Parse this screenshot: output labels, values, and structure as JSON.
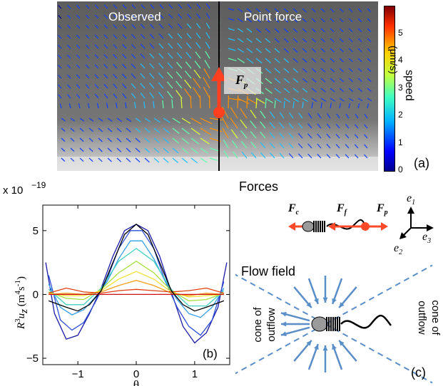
{
  "panel_a": {
    "left_label": "Observed",
    "right_label": "Point force",
    "force_label": "F",
    "force_sub": "p",
    "colorbar": {
      "ticks": [
        "0",
        "1",
        "2",
        "3",
        "4",
        "5"
      ],
      "label": "speed",
      "unit": "(μm/s)",
      "max": 6
    },
    "panel_tag": "(a)"
  },
  "panel_b": {
    "scale_label": "x 10",
    "scale_exp": "−19",
    "ylabel_main": "R",
    "ylabel_sup": "3",
    "ylabel_u": "u",
    "ylabel_sub": "z",
    "ylabel_unit": " (m",
    "ylabel_unit_sup1": "4",
    "ylabel_unit_mid": "s",
    "ylabel_unit_sup2": "-1",
    "ylabel_unit_end": ")",
    "xlabel": "θ",
    "xticks": [
      "−1",
      "0",
      "1"
    ],
    "yticks": [
      "5",
      "0",
      "−5"
    ],
    "panel_tag": "(b)"
  },
  "chart_data": {
    "type": "line",
    "title": "",
    "xlabel": "θ",
    "ylabel": "R³u_z (m⁴s⁻¹)",
    "xlim": [
      -1.6,
      1.6
    ],
    "ylim": [
      -5.5,
      7.0
    ],
    "y_scale_factor": "x 10^-19",
    "grid": false,
    "legend": "none",
    "series": [
      {
        "color": "#000000",
        "x": [
          -1.5,
          -1.2,
          -1.0,
          -0.8,
          -0.6,
          -0.4,
          -0.2,
          0,
          0.2,
          0.4,
          0.6,
          0.8,
          1.0,
          1.2,
          1.5
        ],
        "y": [
          -0.5,
          -1.0,
          -1.3,
          -0.8,
          0.3,
          2.5,
          4.7,
          5.5,
          4.7,
          2.5,
          0.3,
          -0.8,
          -1.3,
          -1.0,
          -0.5
        ]
      },
      {
        "color": "#1a1aa8",
        "x": [
          -1.55,
          -1.4,
          -1.2,
          -1.0,
          -0.8,
          -0.6,
          -0.4,
          -0.2,
          0,
          0.2,
          0.4,
          0.6,
          0.8,
          1.0,
          1.2,
          1.4,
          1.55
        ],
        "y": [
          2.5,
          -1.5,
          -3.5,
          -3.2,
          -1.5,
          0.5,
          3.0,
          5.0,
          5.5,
          5.0,
          3.0,
          0.2,
          -2.5,
          -3.8,
          -3.0,
          -1.0,
          2.5
        ]
      },
      {
        "color": "#2f4fd8",
        "x": [
          -1.5,
          -1.3,
          -1.1,
          -0.9,
          -0.7,
          -0.5,
          -0.3,
          -0.1,
          0.1,
          0.3,
          0.5,
          0.7,
          0.9,
          1.1,
          1.3,
          1.5
        ],
        "y": [
          1.5,
          -2.0,
          -2.8,
          -2.2,
          -0.6,
          1.2,
          3.6,
          5.0,
          5.0,
          3.6,
          1.0,
          -1.0,
          -2.5,
          -3.2,
          -2.0,
          1.0
        ]
      },
      {
        "color": "#35a0e8",
        "x": [
          -1.5,
          -1.3,
          -1.1,
          -0.9,
          -0.7,
          -0.5,
          -0.3,
          -0.1,
          0.1,
          0.3,
          0.5,
          0.7,
          0.9,
          1.1,
          1.3,
          1.5
        ],
        "y": [
          0.8,
          -1.0,
          -1.6,
          -1.2,
          -0.2,
          1.0,
          2.8,
          4.2,
          4.2,
          2.8,
          1.0,
          -0.4,
          -1.5,
          -1.8,
          -1.0,
          0.5
        ]
      },
      {
        "color": "#40d0c0",
        "x": [
          -1.5,
          -1.2,
          -0.9,
          -0.6,
          -0.3,
          0,
          0.3,
          0.6,
          0.9,
          1.2,
          1.5
        ],
        "y": [
          0.4,
          -0.8,
          -0.8,
          0.5,
          2.6,
          3.6,
          2.6,
          0.4,
          -0.9,
          -0.9,
          0.3
        ]
      },
      {
        "color": "#a8e040",
        "x": [
          -1.5,
          -1.2,
          -0.9,
          -0.6,
          -0.3,
          0,
          0.3,
          0.6,
          0.9,
          1.2,
          1.5
        ],
        "y": [
          0.2,
          -0.3,
          -0.4,
          0.4,
          1.7,
          2.6,
          1.7,
          0.3,
          -0.5,
          -0.4,
          0.1
        ]
      },
      {
        "color": "#f2e030",
        "x": [
          -1.5,
          -1.2,
          -0.9,
          -0.6,
          -0.3,
          0,
          0.3,
          0.6,
          0.9,
          1.2,
          1.5
        ],
        "y": [
          0.1,
          -0.1,
          -0.1,
          0.3,
          1.2,
          1.8,
          1.2,
          0.2,
          -0.2,
          -0.1,
          0.0
        ]
      },
      {
        "color": "#f5a020",
        "x": [
          -1.5,
          -1.2,
          -0.9,
          -0.6,
          -0.3,
          0,
          0.3,
          0.6,
          0.9,
          1.2,
          1.5
        ],
        "y": [
          0.0,
          0.1,
          0.0,
          0.2,
          0.7,
          1.1,
          0.7,
          0.1,
          -0.1,
          0.1,
          0.0
        ]
      },
      {
        "color": "#e04010",
        "x": [
          -1.5,
          -1.2,
          -0.9,
          -0.6,
          -0.3,
          0,
          0.3,
          0.6,
          0.9,
          1.2,
          1.5
        ],
        "y": [
          0.1,
          0.5,
          0.2,
          0.1,
          0.3,
          0.4,
          0.3,
          0.2,
          0.3,
          0.5,
          0.1
        ]
      },
      {
        "color": "#d01010",
        "x": [
          -1.5,
          1.5
        ],
        "y": [
          0.0,
          0.0
        ]
      }
    ]
  },
  "panel_forces": {
    "title": "Forces",
    "fc": "F",
    "fc_sub": "c",
    "ff": "F",
    "ff_sub": "f",
    "fp": "F",
    "fp_sub": "p",
    "e1": "e",
    "e1_sub": "1",
    "e2": "e",
    "e2_sub": "2",
    "e3": "e",
    "e3_sub": "3"
  },
  "panel_c": {
    "title": "Flow field",
    "left_text_1": "cone of",
    "left_text_2": "outflow",
    "right_text_1": "cone of",
    "right_text_2": "outflow",
    "panel_tag": "(c)"
  }
}
